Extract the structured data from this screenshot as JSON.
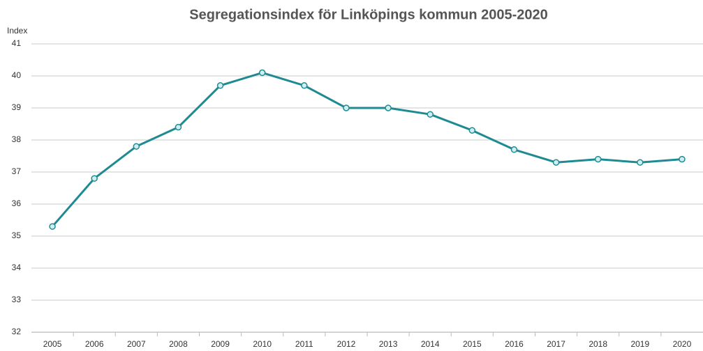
{
  "chart_data": {
    "type": "line",
    "title": "Segregationsindex för Linköpings kommun 2005-2020",
    "y_label": "Index",
    "categories": [
      "2005",
      "2006",
      "2007",
      "2008",
      "2009",
      "2010",
      "2011",
      "2012",
      "2013",
      "2014",
      "2015",
      "2016",
      "2017",
      "2018",
      "2019",
      "2020"
    ],
    "series": [
      {
        "name": "Segregationsindex",
        "color": "#1e8a92",
        "values": [
          35.3,
          36.8,
          37.8,
          38.4,
          39.7,
          40.1,
          39.7,
          39.0,
          39.0,
          38.8,
          38.3,
          37.7,
          37.3,
          37.4,
          37.3,
          37.4
        ]
      }
    ],
    "ylim": [
      32,
      41
    ],
    "yticks": [
      32,
      33,
      34,
      35,
      36,
      37,
      38,
      39,
      40,
      41
    ],
    "grid": true
  }
}
